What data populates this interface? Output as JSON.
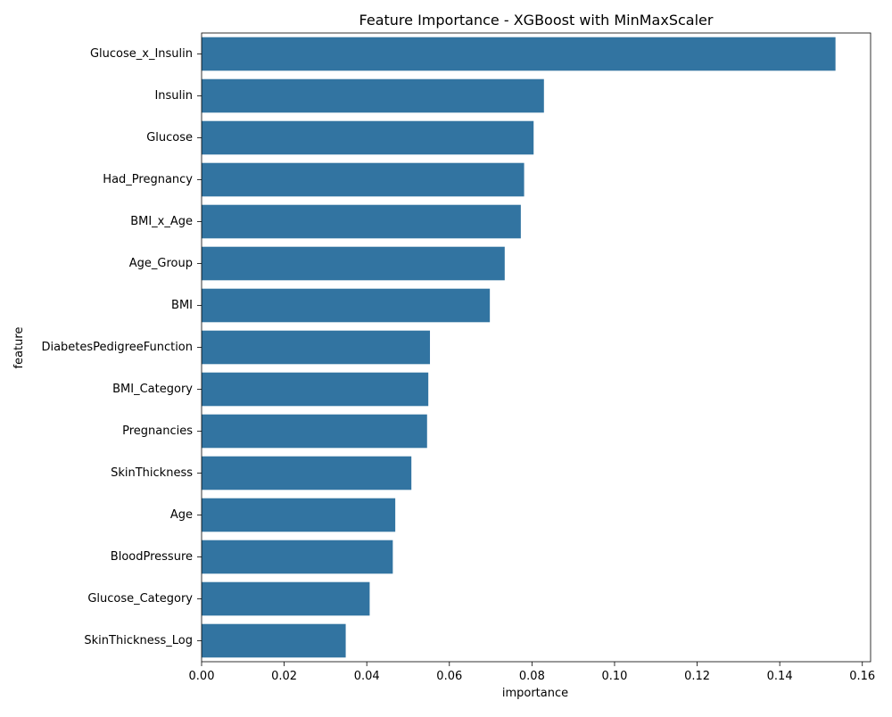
{
  "chart_data": {
    "type": "bar",
    "orientation": "horizontal",
    "title": "Feature Importance - XGBoost with MinMaxScaler",
    "xlabel": "importance",
    "ylabel": "feature",
    "xlim": [
      0,
      0.162
    ],
    "xticks": [
      0.0,
      0.02,
      0.04,
      0.06,
      0.08,
      0.1,
      0.12,
      0.14,
      0.16
    ],
    "xtick_labels": [
      "0.00",
      "0.02",
      "0.04",
      "0.06",
      "0.08",
      "0.10",
      "0.12",
      "0.14",
      "0.16"
    ],
    "grid": false,
    "bar_color": "#3274a1",
    "categories": [
      "Glucose_x_Insulin",
      "Insulin",
      "Glucose",
      "Had_Pregnancy",
      "BMI_x_Age",
      "Age_Group",
      "BMI",
      "DiabetesPedigreeFunction",
      "BMI_Category",
      "Pregnancies",
      "SkinThickness",
      "Age",
      "BloodPressure",
      "Glucose_Category",
      "SkinThickness_Log"
    ],
    "values": [
      0.1535,
      0.0829,
      0.0804,
      0.0781,
      0.0773,
      0.0734,
      0.0698,
      0.0553,
      0.0549,
      0.0546,
      0.0508,
      0.0469,
      0.0463,
      0.0407,
      0.0349
    ]
  }
}
